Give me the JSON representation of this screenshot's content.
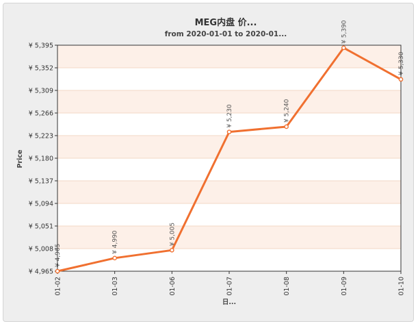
{
  "chart_data": {
    "type": "line",
    "title": "MEG内盘 价...",
    "subtitle": "from 2020-01-01 to 2020-01...",
    "xlabel": "日...",
    "ylabel": "Price",
    "categories": [
      "01-02",
      "01-03",
      "01-06",
      "01-07",
      "01-08",
      "01-09",
      "01-10"
    ],
    "series": [
      {
        "values": [
          4965,
          4990,
          5005,
          5230,
          5240,
          5390,
          5330
        ],
        "data_labels": [
          "¥ 4,965",
          "¥ 4,990",
          "¥ 5,005",
          "¥ 5,230",
          "¥ 5,240",
          "¥ 5,390",
          "¥ 5,330"
        ]
      }
    ],
    "y_ticks": [
      4965,
      5008,
      5051,
      5094,
      5137,
      5180,
      5223,
      5266,
      5309,
      5352,
      5395
    ],
    "y_tick_labels": [
      "¥ 4,965",
      "¥ 5,008",
      "¥ 5,051",
      "¥ 5,094",
      "¥ 5,137",
      "¥ 5,180",
      "¥ 5,223",
      "¥ 5,266",
      "¥ 5,309",
      "¥ 5,352",
      "¥ 5,395"
    ],
    "ylim": [
      4965,
      5395
    ],
    "grid": true,
    "legend": false,
    "colors": {
      "line": "#f07030",
      "band": "#fdf0e8",
      "grid": "#f3d9c6",
      "frame_bg": "#eeeeee",
      "plot_bg": "#ffffff"
    }
  }
}
